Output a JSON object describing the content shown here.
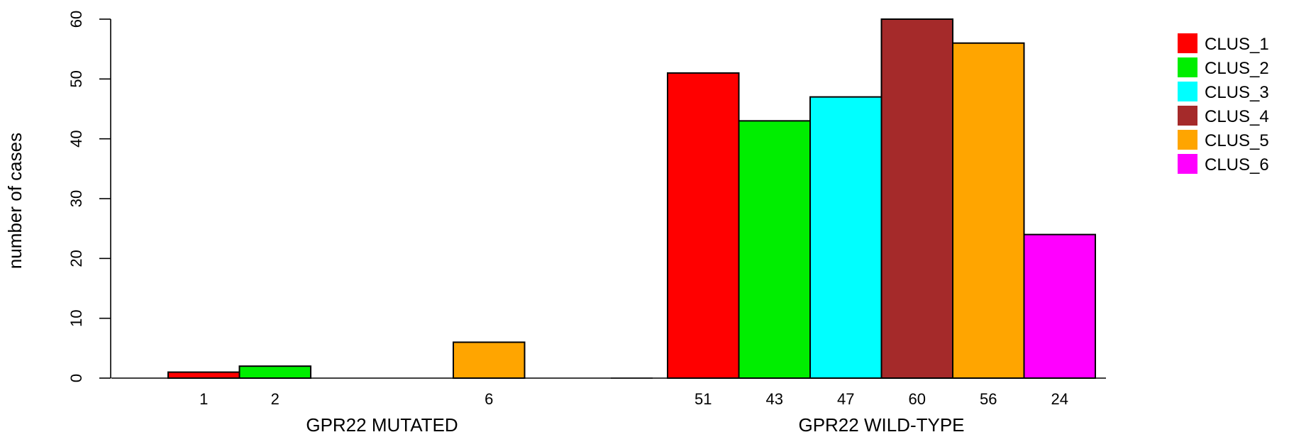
{
  "chart_data": {
    "type": "bar",
    "ylabel": "number of cases",
    "ylim": [
      0,
      60
    ],
    "yticks": [
      0,
      10,
      20,
      30,
      40,
      50,
      60
    ],
    "categories": [
      "CLUS_1",
      "CLUS_2",
      "CLUS_3",
      "CLUS_4",
      "CLUS_5",
      "CLUS_6"
    ],
    "colors": [
      "#ff0000",
      "#00ee00",
      "#00ffff",
      "#a52a2a",
      "#ffa500",
      "#ff00ff"
    ],
    "groups": [
      {
        "name": "GPR22 MUTATED",
        "values": [
          1,
          2,
          0,
          0,
          6,
          0
        ],
        "labels": [
          "1",
          "2",
          "",
          "",
          "6",
          ""
        ]
      },
      {
        "name": "GPR22 WILD-TYPE",
        "values": [
          51,
          43,
          47,
          60,
          56,
          24
        ],
        "labels": [
          "51",
          "43",
          "47",
          "60",
          "56",
          "24"
        ]
      }
    ],
    "legend": {
      "position": "top-right",
      "entries": [
        "CLUS_1",
        "CLUS_2",
        "CLUS_3",
        "CLUS_4",
        "CLUS_5",
        "CLUS_6"
      ]
    },
    "grid": false
  }
}
